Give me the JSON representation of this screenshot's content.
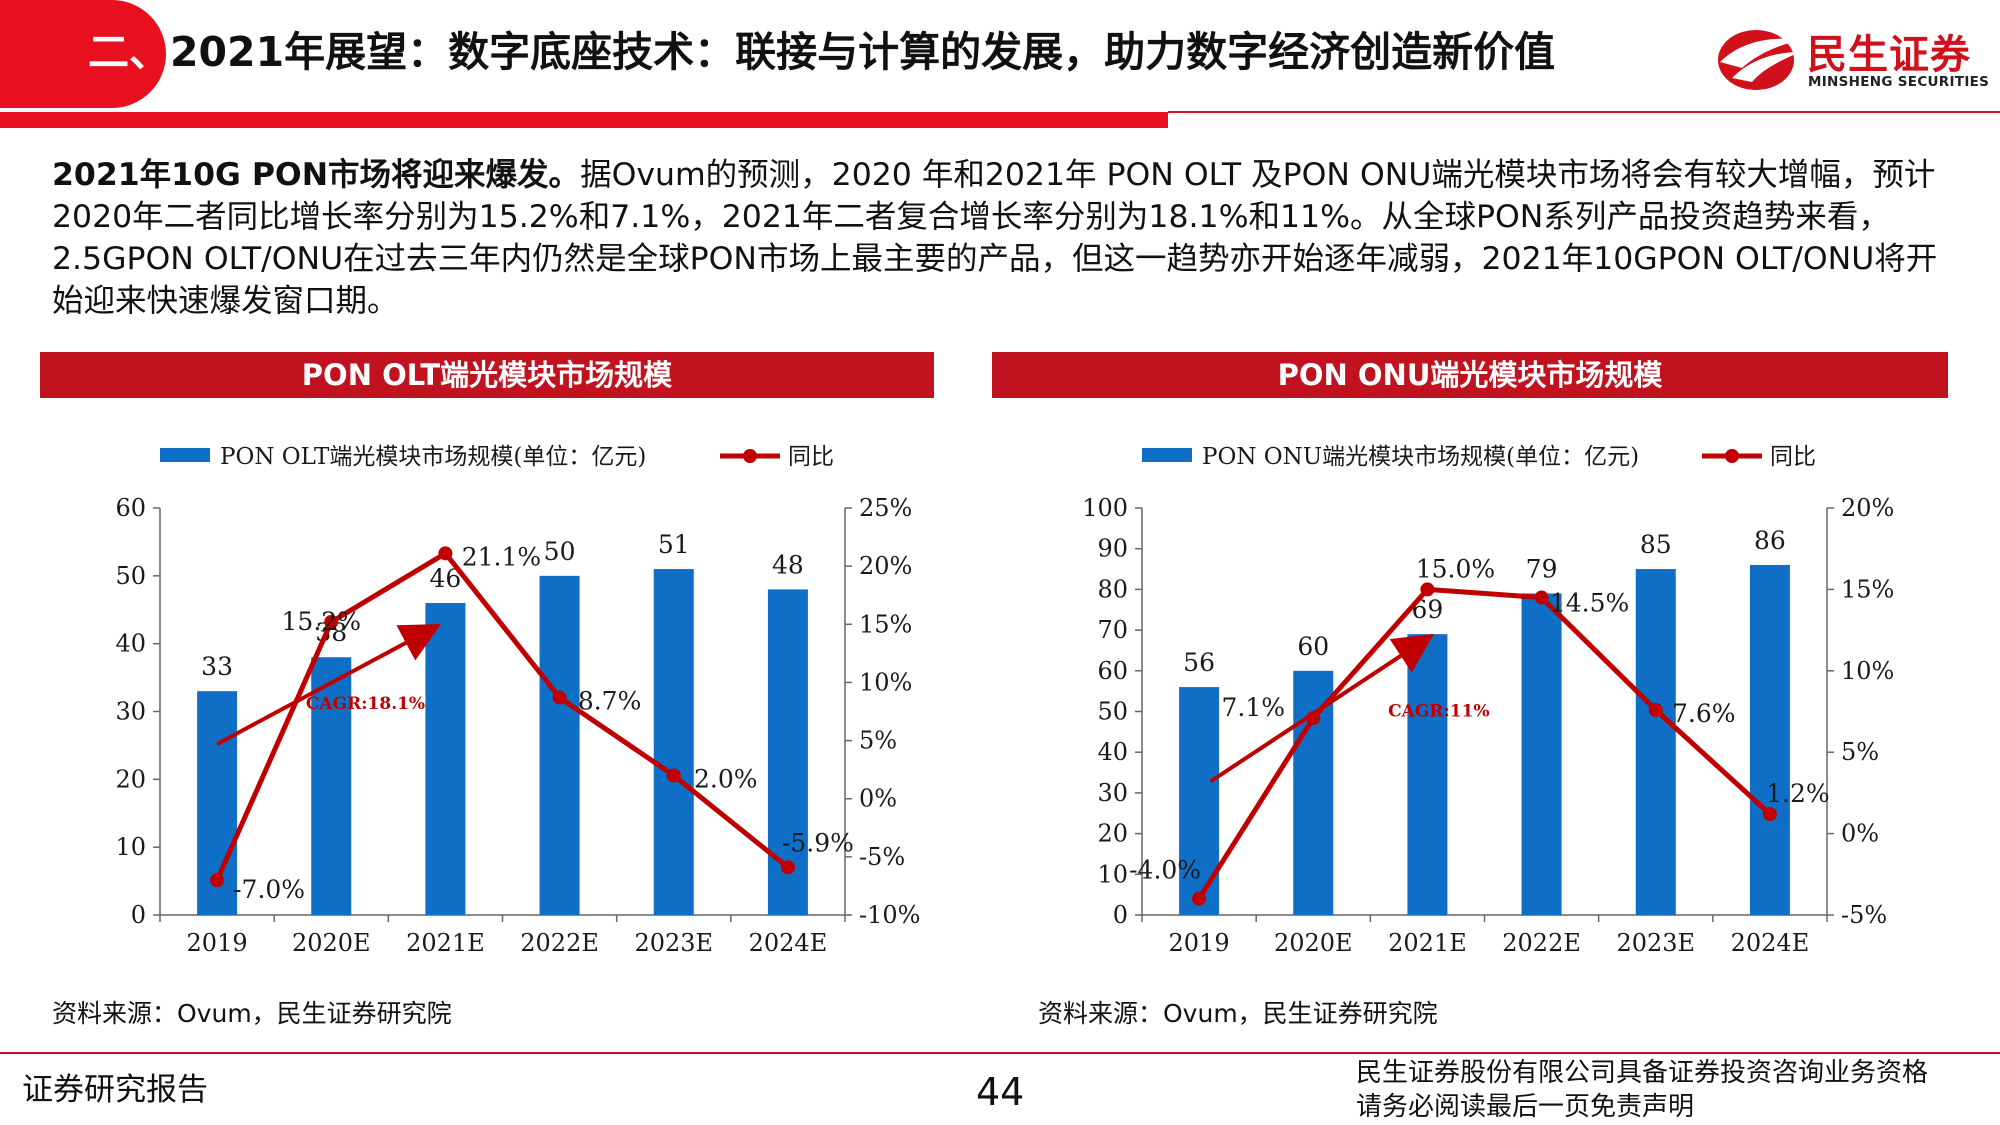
{
  "header": {
    "title_prefix": "二、",
    "title_main": "2021年展望：数字底座技术：联接与计算的发展，助力数字经济创造新价值",
    "logo_cn": "民生证券",
    "logo_en": "MINSHENG SECURITIES"
  },
  "intro": {
    "lead": "2021年10G PON市场将迎来爆发。",
    "body": "据Ovum的预测，2020 年和2021年 PON OLT 及PON ONU端光模块市场将会有较大增幅，预计2020年二者同比增长率分别为15.2%和7.1%，2021年二者复合增长率分别为18.1%和11%。从全球PON系列产品投资趋势来看，2.5GPON OLT/ONU在过去三年内仍然是全球PON市场上最主要的产品，但这一趋势亦开始逐年减弱，2021年10GPON OLT/ONU将开始迎来快速爆发窗口期。"
  },
  "colors": {
    "brand_red": "#e8101e",
    "header_red": "#c1121f",
    "bar_blue": "#0f6fc6",
    "line_red": "#c00000"
  },
  "chart_data": [
    {
      "type": "bar",
      "header": "PON OLT端光模块市场规模",
      "categories": [
        "2019",
        "2020E",
        "2021E",
        "2022E",
        "2023E",
        "2024E"
      ],
      "series": [
        {
          "name": "PON OLT端光模块市场规模(单位：亿元)",
          "type": "bar",
          "axis": "left",
          "values": [
            33,
            38,
            46,
            50,
            51,
            48
          ],
          "labels": [
            "33",
            "38",
            "46",
            "50",
            "51",
            "48"
          ]
        },
        {
          "name": "同比",
          "type": "line",
          "axis": "right",
          "values": [
            -7.0,
            15.2,
            21.1,
            8.7,
            2.0,
            -5.9
          ],
          "labels": [
            "-7.0%",
            "15.2%",
            "21.1%",
            "8.7%",
            "2.0%",
            "-5.9%"
          ]
        }
      ],
      "y_left": {
        "min": 0,
        "max": 60,
        "ticks": [
          "0",
          "10",
          "20",
          "30",
          "40",
          "50",
          "60"
        ]
      },
      "y_right": {
        "min": -10,
        "max": 25,
        "ticks": [
          "-10%",
          "-5%",
          "0%",
          "5%",
          "10%",
          "15%",
          "20%",
          "25%"
        ]
      },
      "annotation": "CAGR:18.1%",
      "source": "资料来源：Ovum，民生证券研究院"
    },
    {
      "type": "bar",
      "header": "PON ONU端光模块市场规模",
      "categories": [
        "2019",
        "2020E",
        "2021E",
        "2022E",
        "2023E",
        "2024E"
      ],
      "series": [
        {
          "name": "PON ONU端光模块市场规模(单位：亿元)",
          "type": "bar",
          "axis": "left",
          "values": [
            56,
            60,
            69,
            79,
            85,
            86
          ],
          "labels": [
            "56",
            "60",
            "69",
            "79",
            "85",
            "86"
          ]
        },
        {
          "name": "同比",
          "type": "line",
          "axis": "right",
          "values": [
            -4.0,
            7.1,
            15.0,
            14.5,
            7.6,
            1.2
          ],
          "labels": [
            "-4.0%",
            "7.1%",
            "15.0%",
            "14.5%",
            "7.6%",
            "1.2%"
          ]
        }
      ],
      "y_left": {
        "min": 0,
        "max": 100,
        "ticks": [
          "0",
          "10",
          "20",
          "30",
          "40",
          "50",
          "60",
          "70",
          "80",
          "90",
          "100"
        ]
      },
      "y_right": {
        "min": -5,
        "max": 20,
        "ticks": [
          "-5%",
          "0%",
          "5%",
          "10%",
          "15%",
          "20%"
        ]
      },
      "annotation": "CAGR:11%",
      "source": "资料来源：Ovum，民生证券研究院"
    }
  ],
  "footer": {
    "left": "证券研究报告",
    "page": "44",
    "right_1": "民生证券股份有限公司具备证券投资咨询业务资格",
    "right_2": "请务必阅读最后一页免责声明"
  }
}
